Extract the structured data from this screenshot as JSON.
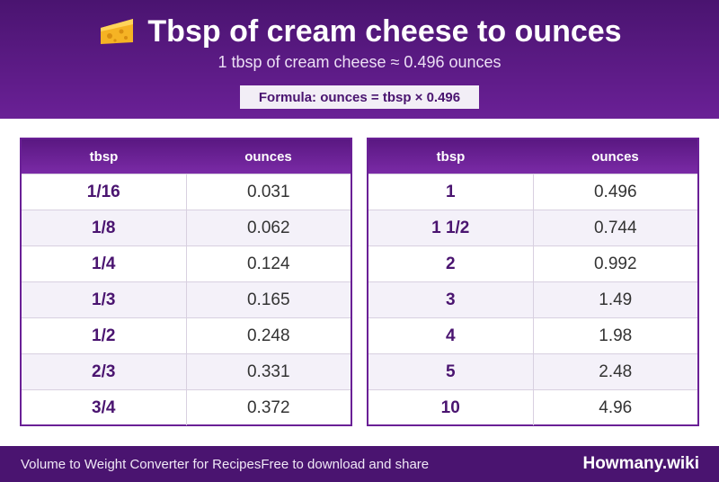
{
  "header": {
    "title": "Tbsp of cream cheese to ounces",
    "title_icon": "cheese-icon",
    "subtitle": "1 tbsp of cream cheese ≈ 0.496 ounces",
    "formula": "Formula: ounces = tbsp × 0.496"
  },
  "tables": {
    "left": {
      "headers": [
        "tbsp",
        "ounces"
      ],
      "rows": [
        [
          "1/16",
          "0.031"
        ],
        [
          "1/8",
          "0.062"
        ],
        [
          "1/4",
          "0.124"
        ],
        [
          "1/3",
          "0.165"
        ],
        [
          "1/2",
          "0.248"
        ],
        [
          "2/3",
          "0.331"
        ],
        [
          "3/4",
          "0.372"
        ]
      ]
    },
    "right": {
      "headers": [
        "tbsp",
        "ounces"
      ],
      "rows": [
        [
          "1",
          "0.496"
        ],
        [
          "1 1/2",
          "0.744"
        ],
        [
          "2",
          "0.992"
        ],
        [
          "3",
          "1.49"
        ],
        [
          "4",
          "1.98"
        ],
        [
          "5",
          "2.48"
        ],
        [
          "10",
          "4.96"
        ]
      ]
    }
  },
  "footer": {
    "link_converter": "Volume to Weight Converter for Recipes",
    "link_download": "Free to download and share",
    "brand": "Howmany.wiki"
  },
  "colors": {
    "header_bg": "#4a1470",
    "accent": "#6a2096",
    "row_alt": "#f4f1f9",
    "tbsp_text": "#4a1470"
  }
}
